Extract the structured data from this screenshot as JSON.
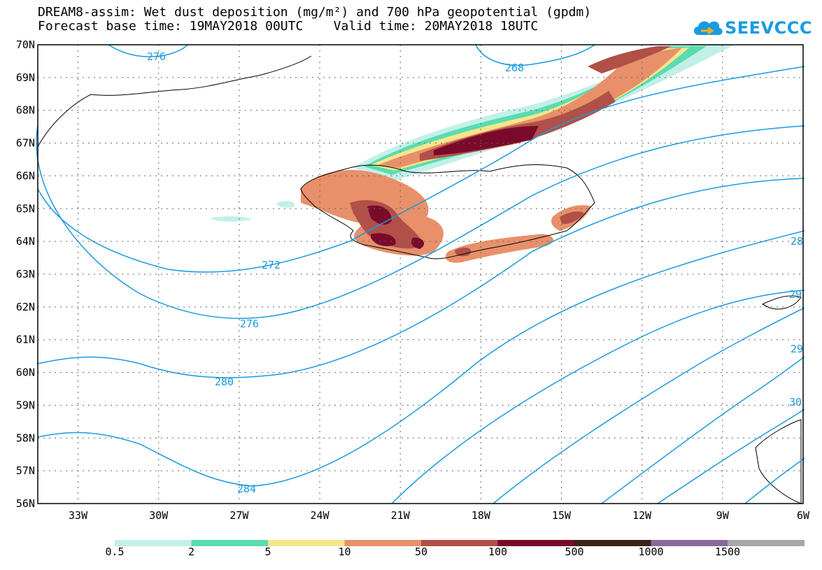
{
  "title_line1": "DREAM8-assim: Wet dust deposition (mg/m²) and 700 hPa geopotential (gpdm)",
  "title_line2": "Forecast base time: 19MAY2018 00UTC    Valid time: 20MAY2018 18UTC",
  "logo": {
    "text": "SEEVCCC",
    "icon": "cloud-icon",
    "color": "#1a9be0"
  },
  "map": {
    "lon_range": [
      -34.5,
      -6
    ],
    "lat_range": [
      56,
      70
    ],
    "lat_ticks": [
      "70N",
      "69N",
      "68N",
      "67N",
      "66N",
      "65N",
      "64N",
      "63N",
      "62N",
      "61N",
      "60N",
      "59N",
      "58N",
      "57N",
      "56N"
    ],
    "lon_ticks": [
      "33W",
      "30W",
      "27W",
      "24W",
      "21W",
      "18W",
      "15W",
      "12W",
      "9W",
      "6W"
    ],
    "contour_color": "#1a9be0",
    "contour_labels": [
      "276",
      "268",
      "272",
      "276",
      "280",
      "284",
      "28",
      "29",
      "29",
      "30"
    ]
  },
  "colorbar": {
    "labels": [
      "0.5",
      "2",
      "5",
      "10",
      "50",
      "100",
      "500",
      "1000",
      "1500"
    ],
    "colors": [
      "#c2f0e8",
      "#5adcb0",
      "#f5e68c",
      "#e8906a",
      "#b05048",
      "#7a0a2a",
      "#3a2418",
      "#8a6a9a",
      "#a8a8a8"
    ]
  }
}
